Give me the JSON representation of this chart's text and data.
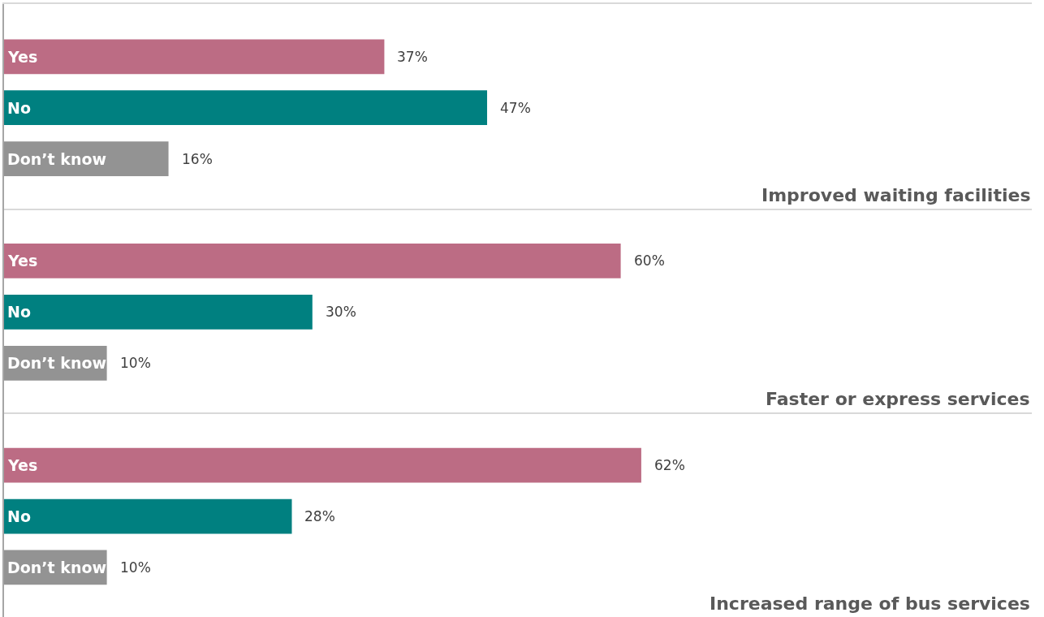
{
  "chart_data": [
    {
      "type": "bar",
      "orientation": "horizontal",
      "title": "Improved waiting facilities",
      "categories": [
        "Yes",
        "No",
        "Don’t know"
      ],
      "values": [
        37,
        47,
        16
      ],
      "colors": [
        "#bc6c84",
        "#008080",
        "#939393"
      ],
      "value_labels": [
        "37%",
        "47%",
        "16%"
      ],
      "xlim": [
        0,
        100
      ],
      "tick_labels": false,
      "grid": false,
      "legend": false
    },
    {
      "type": "bar",
      "orientation": "horizontal",
      "title": "Faster or express services",
      "categories": [
        "Yes",
        "No",
        "Don’t know"
      ],
      "values": [
        60,
        30,
        10
      ],
      "colors": [
        "#bc6c84",
        "#008080",
        "#939393"
      ],
      "value_labels": [
        "60%",
        "30%",
        "10%"
      ],
      "xlim": [
        0,
        100
      ],
      "tick_labels": false,
      "grid": false,
      "legend": false
    },
    {
      "type": "bar",
      "orientation": "horizontal",
      "title": "Increased range of bus services",
      "categories": [
        "Yes",
        "No",
        "Don’t know"
      ],
      "values": [
        62,
        28,
        10
      ],
      "colors": [
        "#bc6c84",
        "#008080",
        "#939393"
      ],
      "value_labels": [
        "62%",
        "28%",
        "10%"
      ],
      "xlim": [
        0,
        100
      ],
      "tick_labels": false,
      "grid": false,
      "legend": false
    }
  ]
}
